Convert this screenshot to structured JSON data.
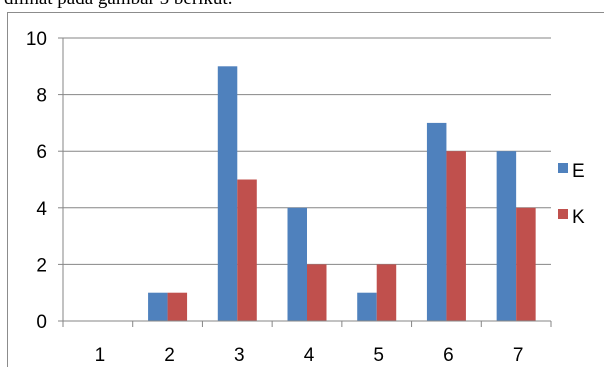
{
  "caption": "dilihat pada gambar 5 berikut.",
  "chart_data": {
    "type": "bar",
    "categories": [
      "1",
      "2",
      "3",
      "4",
      "5",
      "6",
      "7"
    ],
    "series": [
      {
        "name": "E",
        "values": [
          0,
          1,
          9,
          4,
          1,
          7,
          6
        ],
        "color": "#4f81bd"
      },
      {
        "name": "K",
        "values": [
          0,
          1,
          5,
          2,
          2,
          6,
          4
        ],
        "color": "#c0504d"
      }
    ],
    "yticks": [
      0,
      2,
      4,
      6,
      8,
      10
    ],
    "ylim": [
      0,
      10
    ],
    "grid": true,
    "legend": "right"
  }
}
